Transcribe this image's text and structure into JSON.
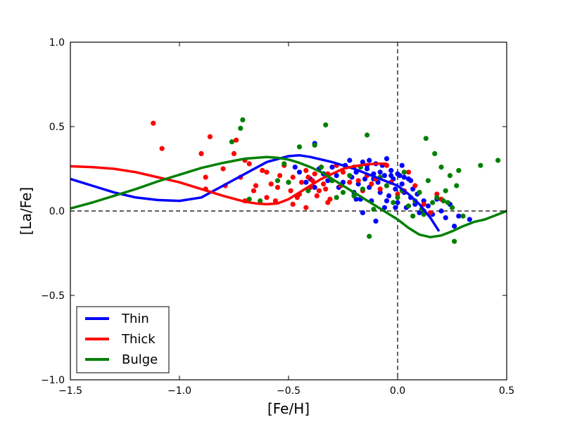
{
  "chart_data": {
    "type": "scatter",
    "title": "",
    "xlabel": "[Fe/H]",
    "ylabel": "[La/Fe]",
    "xlim": [
      -1.5,
      0.5
    ],
    "ylim": [
      -1.0,
      1.0
    ],
    "xticks": [
      -1.5,
      -1.0,
      -0.5,
      0.0,
      0.5
    ],
    "xtick_labels": [
      "−1.5",
      "−1.0",
      "−0.5",
      "0.0",
      "0.5"
    ],
    "yticks": [
      -1.0,
      -0.5,
      0.0,
      0.5,
      1.0
    ],
    "ytick_labels": [
      "−1.0",
      "−0.5",
      "0.0",
      "0.5",
      "1.0"
    ],
    "reference_lines": [
      {
        "orientation": "horizontal",
        "value": 0.0,
        "style": "dashed"
      },
      {
        "orientation": "vertical",
        "value": 0.0,
        "style": "dashed"
      }
    ],
    "legend_position": "lower-left",
    "series": [
      {
        "name": "Thin",
        "color": "#0000ff",
        "model": [
          [
            -1.5,
            0.19
          ],
          [
            -1.4,
            0.15
          ],
          [
            -1.3,
            0.11
          ],
          [
            -1.2,
            0.08
          ],
          [
            -1.1,
            0.065
          ],
          [
            -1.0,
            0.06
          ],
          [
            -0.9,
            0.08
          ],
          [
            -0.8,
            0.15
          ],
          [
            -0.7,
            0.22
          ],
          [
            -0.6,
            0.29
          ],
          [
            -0.5,
            0.325
          ],
          [
            -0.45,
            0.33
          ],
          [
            -0.4,
            0.32
          ],
          [
            -0.3,
            0.29
          ],
          [
            -0.2,
            0.25
          ],
          [
            -0.1,
            0.2
          ],
          [
            0.0,
            0.15
          ],
          [
            0.05,
            0.1
          ],
          [
            0.1,
            0.04
          ],
          [
            0.15,
            -0.04
          ],
          [
            0.19,
            -0.12
          ]
        ],
        "points": [
          [
            -0.47,
            0.26
          ],
          [
            -0.45,
            0.23
          ],
          [
            -0.42,
            0.17
          ],
          [
            -0.4,
            0.19
          ],
          [
            -0.38,
            0.14
          ],
          [
            -0.36,
            0.25
          ],
          [
            -0.34,
            0.22
          ],
          [
            -0.32,
            0.18
          ],
          [
            -0.3,
            0.26
          ],
          [
            -0.28,
            0.21
          ],
          [
            -0.27,
            0.14
          ],
          [
            -0.25,
            0.17
          ],
          [
            -0.24,
            0.27
          ],
          [
            -0.22,
            0.3
          ],
          [
            -0.21,
            0.2
          ],
          [
            -0.2,
            0.11
          ],
          [
            -0.19,
            0.23
          ],
          [
            -0.18,
            0.16
          ],
          [
            -0.17,
            0.07
          ],
          [
            -0.16,
            0.29
          ],
          [
            -0.15,
            0.19
          ],
          [
            -0.14,
            0.25
          ],
          [
            -0.13,
            0.14
          ],
          [
            -0.12,
            0.06
          ],
          [
            -0.11,
            0.22
          ],
          [
            -0.1,
            0.28
          ],
          [
            -0.09,
            0.17
          ],
          [
            -0.08,
            0.11
          ],
          [
            -0.07,
            0.27
          ],
          [
            -0.06,
            0.21
          ],
          [
            -0.05,
            0.15
          ],
          [
            -0.04,
            0.09
          ],
          [
            -0.03,
            0.24
          ],
          [
            -0.02,
            0.19
          ],
          [
            -0.01,
            0.13
          ],
          [
            0.0,
            0.05
          ],
          [
            0.01,
            0.21
          ],
          [
            0.02,
            0.16
          ],
          [
            0.03,
            0.11
          ],
          [
            0.04,
            0.02
          ],
          [
            0.05,
            0.19
          ],
          [
            0.06,
            0.08
          ],
          [
            0.07,
            0.13
          ],
          [
            0.08,
            0.04
          ],
          [
            0.09,
            0.1
          ],
          [
            0.1,
            -0.01
          ],
          [
            0.12,
            0.06
          ],
          [
            0.14,
            0.03
          ],
          [
            0.16,
            -0.02
          ],
          [
            0.18,
            0.07
          ],
          [
            0.2,
            0.0
          ],
          [
            0.22,
            -0.04
          ],
          [
            0.24,
            0.04
          ],
          [
            0.26,
            -0.09
          ],
          [
            0.28,
            -0.03
          ],
          [
            0.33,
            -0.05
          ],
          [
            -0.38,
            0.4
          ],
          [
            -0.13,
            0.3
          ],
          [
            -0.05,
            0.31
          ],
          [
            0.02,
            0.27
          ],
          [
            -0.01,
            0.02
          ],
          [
            -0.06,
            0.02
          ],
          [
            -0.16,
            -0.01
          ],
          [
            -0.19,
            0.07
          ],
          [
            -0.1,
            -0.06
          ],
          [
            0.12,
            0.0
          ],
          [
            0.0,
            0.22
          ],
          [
            0.03,
            0.2
          ],
          [
            0.06,
            0.18
          ],
          [
            -0.03,
            0.21
          ],
          [
            -0.08,
            0.23
          ],
          [
            -0.11,
            0.19
          ],
          [
            -0.14,
            0.27
          ],
          [
            -0.05,
            0.06
          ]
        ]
      },
      {
        "name": "Thick",
        "color": "#ff0000",
        "model": [
          [
            -1.5,
            0.265
          ],
          [
            -1.4,
            0.26
          ],
          [
            -1.3,
            0.25
          ],
          [
            -1.2,
            0.23
          ],
          [
            -1.1,
            0.2
          ],
          [
            -1.0,
            0.17
          ],
          [
            -0.9,
            0.13
          ],
          [
            -0.8,
            0.09
          ],
          [
            -0.7,
            0.055
          ],
          [
            -0.65,
            0.045
          ],
          [
            -0.6,
            0.04
          ],
          [
            -0.55,
            0.045
          ],
          [
            -0.5,
            0.07
          ],
          [
            -0.45,
            0.11
          ],
          [
            -0.4,
            0.15
          ],
          [
            -0.35,
            0.19
          ],
          [
            -0.3,
            0.22
          ],
          [
            -0.25,
            0.25
          ],
          [
            -0.2,
            0.265
          ],
          [
            -0.15,
            0.275
          ],
          [
            -0.1,
            0.28
          ],
          [
            -0.05,
            0.28
          ]
        ],
        "points": [
          [
            -1.12,
            0.52
          ],
          [
            -1.08,
            0.37
          ],
          [
            -0.86,
            0.44
          ],
          [
            -0.9,
            0.34
          ],
          [
            -0.88,
            0.2
          ],
          [
            -0.88,
            0.13
          ],
          [
            -0.8,
            0.25
          ],
          [
            -0.79,
            0.15
          ],
          [
            -0.75,
            0.34
          ],
          [
            -0.74,
            0.42
          ],
          [
            -0.72,
            0.2
          ],
          [
            -0.7,
            0.3
          ],
          [
            -0.7,
            0.06
          ],
          [
            -0.68,
            0.28
          ],
          [
            -0.66,
            0.12
          ],
          [
            -0.62,
            0.24
          ],
          [
            -0.6,
            0.23
          ],
          [
            -0.6,
            0.08
          ],
          [
            -0.58,
            0.16
          ],
          [
            -0.55,
            0.14
          ],
          [
            -0.54,
            0.21
          ],
          [
            -0.52,
            0.27
          ],
          [
            -0.5,
            0.17
          ],
          [
            -0.49,
            0.12
          ],
          [
            -0.48,
            0.2
          ],
          [
            -0.46,
            0.08
          ],
          [
            -0.45,
            0.1
          ],
          [
            -0.44,
            0.17
          ],
          [
            -0.42,
            0.24
          ],
          [
            -0.41,
            0.2
          ],
          [
            -0.4,
            0.14
          ],
          [
            -0.39,
            0.18
          ],
          [
            -0.38,
            0.22
          ],
          [
            -0.37,
            0.09
          ],
          [
            -0.36,
            0.12
          ],
          [
            -0.35,
            0.26
          ],
          [
            -0.34,
            0.16
          ],
          [
            -0.33,
            0.13
          ],
          [
            -0.32,
            0.22
          ],
          [
            -0.31,
            0.07
          ],
          [
            -0.3,
            0.18
          ],
          [
            -0.28,
            0.27
          ],
          [
            -0.26,
            0.15
          ],
          [
            -0.25,
            0.23
          ],
          [
            -0.22,
            0.17
          ],
          [
            -0.2,
            0.26
          ],
          [
            -0.18,
            0.18
          ],
          [
            -0.16,
            0.12
          ],
          [
            -0.14,
            0.21
          ],
          [
            -0.12,
            0.16
          ],
          [
            -0.1,
            0.19
          ],
          [
            -0.08,
            0.13
          ],
          [
            -0.05,
            0.27
          ],
          [
            -0.03,
            0.17
          ],
          [
            0.0,
            0.1
          ],
          [
            0.03,
            0.12
          ],
          [
            0.05,
            0.23
          ],
          [
            0.08,
            0.15
          ],
          [
            0.12,
            0.04
          ],
          [
            0.15,
            -0.01
          ],
          [
            0.18,
            0.1
          ],
          [
            0.2,
            0.07
          ],
          [
            -0.56,
            0.06
          ],
          [
            -0.65,
            0.15
          ],
          [
            -0.42,
            0.02
          ],
          [
            -0.48,
            0.04
          ],
          [
            -0.32,
            0.05
          ]
        ]
      },
      {
        "name": "Bulge",
        "color": "#008000",
        "model": [
          [
            -1.5,
            0.015
          ],
          [
            -1.4,
            0.05
          ],
          [
            -1.3,
            0.09
          ],
          [
            -1.2,
            0.13
          ],
          [
            -1.1,
            0.175
          ],
          [
            -1.0,
            0.215
          ],
          [
            -0.9,
            0.255
          ],
          [
            -0.8,
            0.285
          ],
          [
            -0.7,
            0.31
          ],
          [
            -0.6,
            0.32
          ],
          [
            -0.55,
            0.315
          ],
          [
            -0.5,
            0.305
          ],
          [
            -0.45,
            0.285
          ],
          [
            -0.4,
            0.26
          ],
          [
            -0.35,
            0.23
          ],
          [
            -0.3,
            0.19
          ],
          [
            -0.25,
            0.15
          ],
          [
            -0.2,
            0.11
          ],
          [
            -0.15,
            0.07
          ],
          [
            -0.1,
            0.03
          ],
          [
            -0.05,
            -0.01
          ],
          [
            0.0,
            -0.05
          ],
          [
            0.05,
            -0.1
          ],
          [
            0.1,
            -0.14
          ],
          [
            0.15,
            -0.155
          ],
          [
            0.2,
            -0.145
          ],
          [
            0.25,
            -0.12
          ],
          [
            0.3,
            -0.09
          ],
          [
            0.35,
            -0.065
          ],
          [
            0.4,
            -0.05
          ],
          [
            0.45,
            -0.025
          ],
          [
            0.5,
            0.0
          ]
        ],
        "points": [
          [
            -0.72,
            0.49
          ],
          [
            -0.71,
            0.54
          ],
          [
            -0.76,
            0.41
          ],
          [
            -0.68,
            0.07
          ],
          [
            -0.52,
            0.28
          ],
          [
            -0.5,
            0.17
          ],
          [
            -0.45,
            0.38
          ],
          [
            -0.41,
            0.12
          ],
          [
            -0.38,
            0.39
          ],
          [
            -0.33,
            0.51
          ],
          [
            -0.3,
            0.18
          ],
          [
            -0.35,
            0.26
          ],
          [
            -0.28,
            0.08
          ],
          [
            -0.25,
            0.11
          ],
          [
            -0.22,
            0.21
          ],
          [
            -0.2,
            0.09
          ],
          [
            -0.16,
            0.13
          ],
          [
            -0.14,
            0.45
          ],
          [
            -0.13,
            -0.15
          ],
          [
            -0.11,
            0.01
          ],
          [
            -0.08,
            0.2
          ],
          [
            -0.05,
            0.15
          ],
          [
            -0.02,
            0.05
          ],
          [
            0.0,
            0.08
          ],
          [
            0.02,
            0.12
          ],
          [
            0.05,
            0.03
          ],
          [
            0.08,
            0.06
          ],
          [
            0.1,
            0.11
          ],
          [
            0.12,
            -0.02
          ],
          [
            0.13,
            0.43
          ],
          [
            0.14,
            0.18
          ],
          [
            0.16,
            0.05
          ],
          [
            0.17,
            0.34
          ],
          [
            0.2,
            0.26
          ],
          [
            0.22,
            0.12
          ],
          [
            0.23,
            0.05
          ],
          [
            0.24,
            0.21
          ],
          [
            0.25,
            0.02
          ],
          [
            0.26,
            -0.18
          ],
          [
            0.27,
            0.15
          ],
          [
            0.28,
            0.24
          ],
          [
            0.3,
            -0.03
          ],
          [
            0.38,
            0.27
          ],
          [
            0.46,
            0.3
          ],
          [
            0.07,
            -0.03
          ],
          [
            0.03,
            0.23
          ],
          [
            0.11,
            0.01
          ],
          [
            -0.17,
            0.26
          ],
          [
            -0.55,
            0.18
          ],
          [
            -0.63,
            0.06
          ],
          [
            0.21,
            0.06
          ],
          [
            0.18,
            0.08
          ]
        ]
      }
    ]
  }
}
